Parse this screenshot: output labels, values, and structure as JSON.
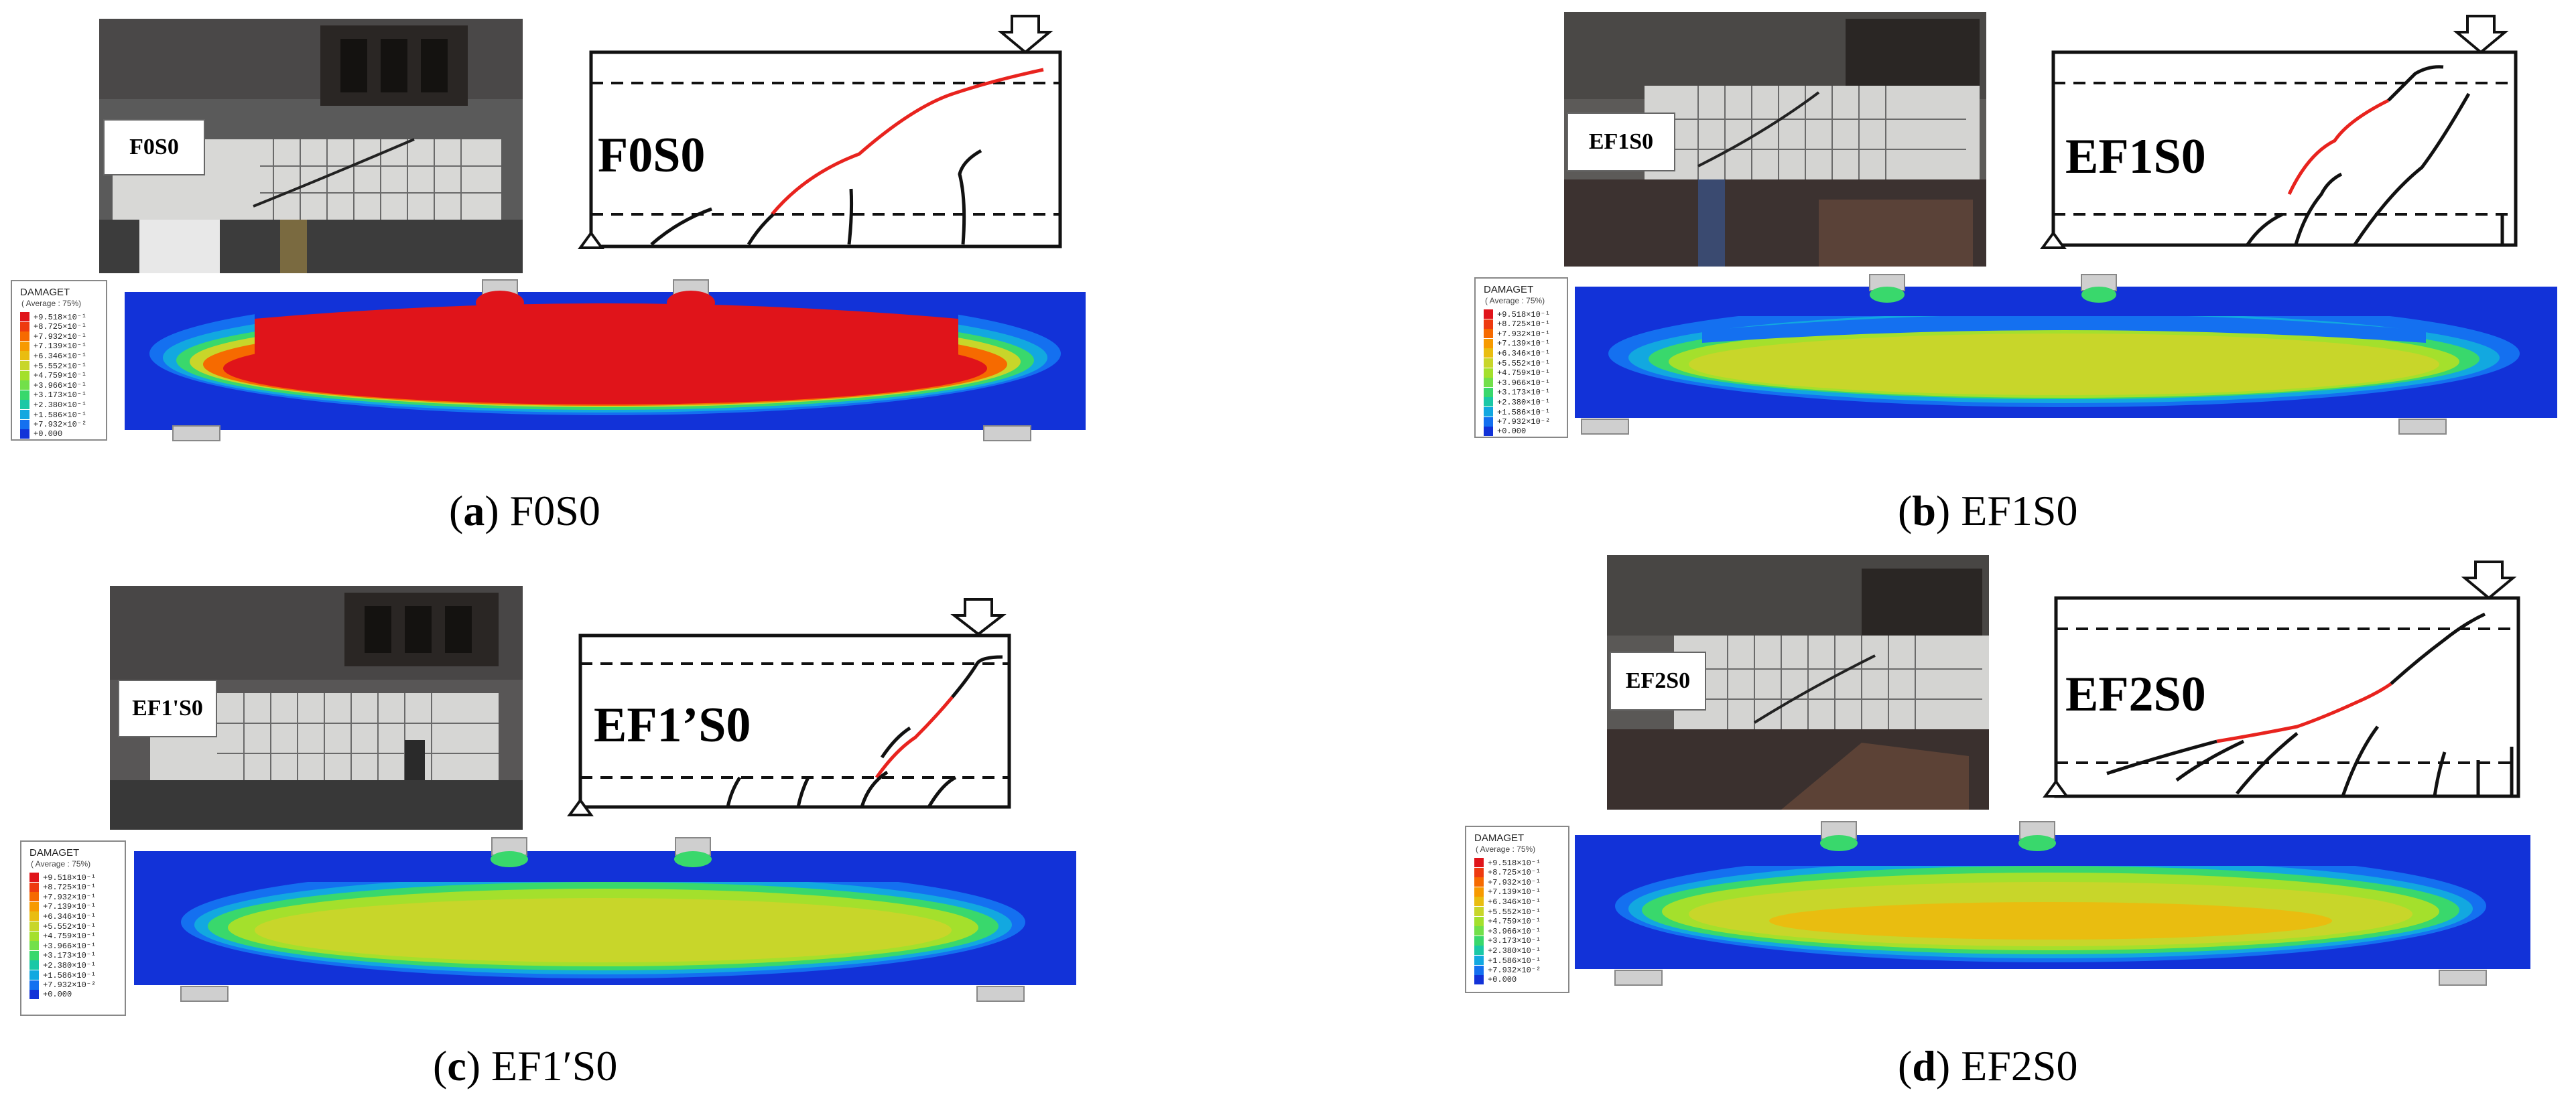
{
  "panels": [
    {
      "id": "a",
      "specimen": "F0S0",
      "caption_letter": "a",
      "caption_text": "F0S0",
      "photo_tag": "F0S0",
      "sketch_label": "F0S0",
      "legend": {
        "title": "DAMAGET",
        "subtitle": "( Average : 75%)",
        "values": [
          "+9.518×10⁻¹",
          "+8.725×10⁻¹",
          "+7.932×10⁻¹",
          "+7.139×10⁻¹",
          "+6.346×10⁻¹",
          "+5.552×10⁻¹",
          "+4.759×10⁻¹",
          "+3.966×10⁻¹",
          "+3.173×10⁻¹",
          "+2.380×10⁻¹",
          "+1.586×10⁻¹",
          "+7.932×10⁻²",
          "+0.000"
        ]
      }
    },
    {
      "id": "b",
      "specimen": "EF1S0",
      "caption_letter": "b",
      "caption_text": "EF1S0",
      "photo_tag": "EF1S0",
      "sketch_label": "EF1S0",
      "legend": {
        "title": "DAMAGET",
        "subtitle": "( Average : 75%)",
        "values": [
          "+9.518×10⁻¹",
          "+8.725×10⁻¹",
          "+7.932×10⁻¹",
          "+7.139×10⁻¹",
          "+6.346×10⁻¹",
          "+5.552×10⁻¹",
          "+4.759×10⁻¹",
          "+3.966×10⁻¹",
          "+3.173×10⁻¹",
          "+2.380×10⁻¹",
          "+1.586×10⁻¹",
          "+7.932×10⁻²",
          "+0.000"
        ]
      }
    },
    {
      "id": "c",
      "specimen": "EF1'S0",
      "caption_letter": "c",
      "caption_text": "EF1′S0",
      "photo_tag": "EF1'S0",
      "sketch_label": "EF1’S0",
      "legend": {
        "title": "DAMAGET",
        "subtitle": "( Average : 75%)",
        "values": [
          "+9.518×10⁻¹",
          "+8.725×10⁻¹",
          "+7.932×10⁻¹",
          "+7.139×10⁻¹",
          "+6.346×10⁻¹",
          "+5.552×10⁻¹",
          "+4.759×10⁻¹",
          "+3.966×10⁻¹",
          "+3.173×10⁻¹",
          "+2.380×10⁻¹",
          "+1.586×10⁻¹",
          "+7.932×10⁻²",
          "+0.000"
        ]
      }
    },
    {
      "id": "d",
      "specimen": "EF2S0",
      "caption_letter": "d",
      "caption_text": "EF2S0",
      "photo_tag": "EF2S0",
      "sketch_label": "EF2S0",
      "legend": {
        "title": "DAMAGET",
        "subtitle": "( Average : 75%)",
        "values": [
          "+9.518×10⁻¹",
          "+8.725×10⁻¹",
          "+7.932×10⁻¹",
          "+7.139×10⁻¹",
          "+6.346×10⁻¹",
          "+5.552×10⁻¹",
          "+4.759×10⁻¹",
          "+3.966×10⁻¹",
          "+3.173×10⁻¹",
          "+2.380×10⁻¹",
          "+1.586×10⁻¹",
          "+7.932×10⁻²",
          "+0.000"
        ]
      }
    }
  ],
  "colors": {
    "crack_main": "#e8231e",
    "crack": "#111111",
    "damage_scale": [
      "#e0141a",
      "#ee3a10",
      "#f66a00",
      "#f79a00",
      "#e9bd10",
      "#c8d62a",
      "#a4e02c",
      "#72e04a",
      "#39d86c",
      "#1ac8a6",
      "#12a8e0",
      "#1470f0",
      "#1232d8"
    ]
  }
}
